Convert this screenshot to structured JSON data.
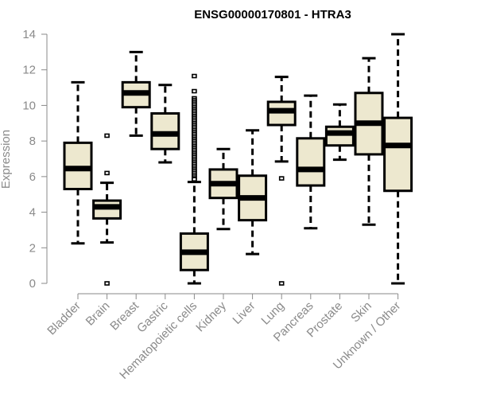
{
  "chart_data": {
    "type": "boxplot",
    "title": "ENSG00000170801 - HTRA3",
    "xlabel": "",
    "ylabel": "Expression",
    "ylim": [
      0,
      14
    ],
    "yticks": [
      0,
      2,
      4,
      6,
      8,
      10,
      12,
      14
    ],
    "grid": false,
    "legend": "none",
    "colors": {
      "box_fill": "#ede8cf",
      "box_stroke": "#000000",
      "axis": "#8a8a8a",
      "tick_text": "#8a8a8a",
      "title": "#000000"
    },
    "categories": [
      "Bladder",
      "Brain",
      "Breast",
      "Gastric",
      "Hematopoietic cells",
      "Kidney",
      "Liver",
      "Lung",
      "Pancreas",
      "Prostate",
      "Skin",
      "Unknown / Other"
    ],
    "series": [
      {
        "name": "Bladder",
        "whisker_low": 2.25,
        "q1": 5.3,
        "median": 6.45,
        "q3": 7.9,
        "whisker_high": 11.3,
        "outliers": []
      },
      {
        "name": "Brain",
        "whisker_low": 2.3,
        "q1": 3.65,
        "median": 4.3,
        "q3": 4.65,
        "whisker_high": 5.65,
        "outliers": [
          8.3,
          6.2,
          0.0
        ]
      },
      {
        "name": "Breast",
        "whisker_low": 8.3,
        "q1": 9.9,
        "median": 10.7,
        "q3": 11.3,
        "whisker_high": 13.0,
        "outliers": []
      },
      {
        "name": "Gastric",
        "whisker_low": 6.8,
        "q1": 7.55,
        "median": 8.4,
        "q3": 9.55,
        "whisker_high": 11.15,
        "outliers": []
      },
      {
        "name": "Hematopoietic cells",
        "whisker_low": 0.0,
        "q1": 0.75,
        "median": 1.75,
        "q3": 2.8,
        "whisker_high": 5.7,
        "outliers": [
          11.65,
          10.8,
          10.4,
          10.3,
          10.2,
          10.1,
          10.0,
          9.9,
          9.8,
          9.7,
          9.6,
          9.5,
          9.4,
          9.3,
          9.2,
          9.1,
          9.0,
          8.9,
          8.8,
          8.7,
          8.6,
          8.5,
          8.4,
          8.3,
          8.2,
          8.1,
          8.0,
          7.9,
          7.8,
          7.7,
          7.6,
          7.5,
          7.4,
          7.3,
          7.2,
          7.1,
          7.0,
          6.9,
          6.8,
          6.7,
          6.6,
          6.5,
          6.4,
          6.3,
          6.2,
          6.1,
          6.0,
          5.9,
          5.85
        ]
      },
      {
        "name": "Kidney",
        "whisker_low": 3.05,
        "q1": 4.8,
        "median": 5.6,
        "q3": 6.4,
        "whisker_high": 7.55,
        "outliers": []
      },
      {
        "name": "Liver",
        "whisker_low": 1.65,
        "q1": 3.55,
        "median": 4.8,
        "q3": 6.05,
        "whisker_high": 8.6,
        "outliers": []
      },
      {
        "name": "Lung",
        "whisker_low": 6.85,
        "q1": 8.9,
        "median": 9.7,
        "q3": 10.2,
        "whisker_high": 11.6,
        "outliers": [
          5.9,
          0.0
        ]
      },
      {
        "name": "Pancreas",
        "whisker_low": 3.1,
        "q1": 5.5,
        "median": 6.4,
        "q3": 8.15,
        "whisker_high": 10.55,
        "outliers": []
      },
      {
        "name": "Prostate",
        "whisker_low": 6.95,
        "q1": 7.75,
        "median": 8.45,
        "q3": 8.8,
        "whisker_high": 10.05,
        "outliers": []
      },
      {
        "name": "Skin",
        "whisker_low": 3.3,
        "q1": 7.25,
        "median": 9.0,
        "q3": 10.7,
        "whisker_high": 12.65,
        "outliers": []
      },
      {
        "name": "Unknown / Other",
        "whisker_low": 0.0,
        "q1": 5.2,
        "median": 7.75,
        "q3": 9.3,
        "whisker_high": 14.0,
        "outliers": []
      }
    ]
  }
}
